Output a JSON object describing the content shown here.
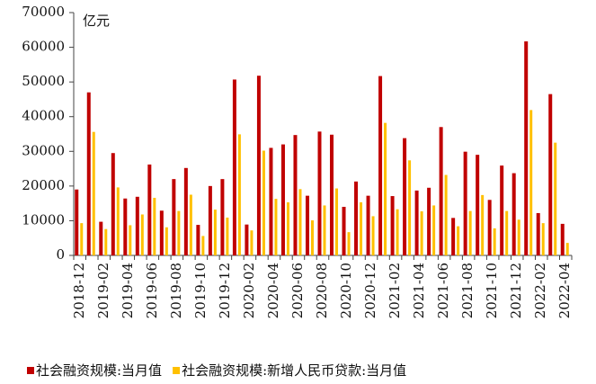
{
  "chart_data": {
    "type": "bar",
    "y_unit": "亿元",
    "categories": [
      "2018-12",
      null,
      "2019-02",
      null,
      "2019-04",
      null,
      "2019-06",
      null,
      "2019-08",
      null,
      "2019-10",
      null,
      "2019-12",
      null,
      "2020-02",
      null,
      "2020-04",
      null,
      "2020-06",
      null,
      "2020-08",
      null,
      "2020-10",
      null,
      "2020-12",
      null,
      "2021-02",
      null,
      "2021-04",
      null,
      "2021-06",
      null,
      "2021-08",
      null,
      "2021-10",
      null,
      "2021-12",
      null,
      "2022-02",
      null,
      "2022-04"
    ],
    "series": [
      {
        "name": "社会融资规模:当月值",
        "color": "#c00000",
        "values": [
          19000,
          47000,
          9700,
          29500,
          16400,
          16900,
          26200,
          12900,
          22000,
          25200,
          8800,
          20000,
          22000,
          50700,
          8900,
          51800,
          31000,
          32000,
          34700,
          17200,
          35700,
          34800,
          14000,
          21300,
          17200,
          51700,
          17100,
          33800,
          18700,
          19500,
          37000,
          10800,
          29900,
          29000,
          16000,
          25900,
          23700,
          61700,
          12200,
          46500,
          9100
        ]
      },
      {
        "name": "社会融资规模:新增人民币贷款:当月值",
        "color": "#ffc000",
        "values": [
          9300,
          35600,
          7600,
          19600,
          8700,
          11800,
          16600,
          8100,
          12800,
          17500,
          5600,
          13200,
          10900,
          34900,
          7200,
          30200,
          16300,
          15300,
          19100,
          10100,
          14400,
          19300,
          6700,
          15300,
          11300,
          38200,
          13300,
          27400,
          12700,
          14400,
          23200,
          8400,
          12800,
          17400,
          7800,
          12800,
          10300,
          41900,
          9300,
          32500,
          3600
        ]
      }
    ],
    "ylim": [
      0,
      70000
    ],
    "yticks": [
      0,
      10000,
      20000,
      30000,
      40000,
      50000,
      60000,
      70000
    ],
    "grid": false,
    "legend": "bottom"
  }
}
